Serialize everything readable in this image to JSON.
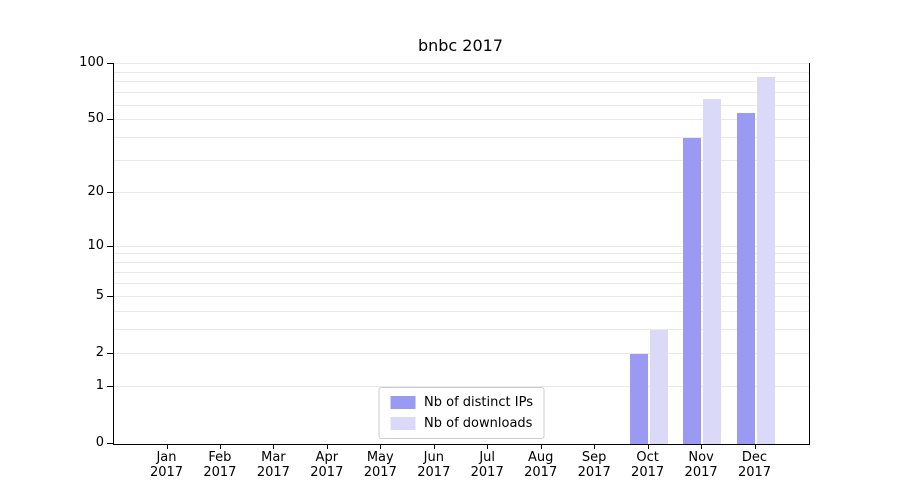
{
  "title": "bnbc 2017",
  "colors": {
    "background": "#ffffff",
    "axis": "#000000",
    "grid": "#e9e9e9",
    "legend_border": "#cccccc",
    "series_ips": "#9a9af2",
    "series_downloads": "#dadaf8"
  },
  "chart_data": {
    "type": "bar",
    "title": "bnbc 2017",
    "scale": "log1p",
    "grid": true,
    "ylim": [
      0,
      100
    ],
    "yticks": [
      0,
      1,
      2,
      5,
      10,
      20,
      50,
      100
    ],
    "gridlines": [
      1,
      2,
      3,
      4,
      5,
      6,
      7,
      8,
      9,
      10,
      20,
      30,
      40,
      50,
      60,
      70,
      80,
      90,
      100
    ],
    "categories": [
      {
        "month": "Jan",
        "year": "2017"
      },
      {
        "month": "Feb",
        "year": "2017"
      },
      {
        "month": "Mar",
        "year": "2017"
      },
      {
        "month": "Apr",
        "year": "2017"
      },
      {
        "month": "May",
        "year": "2017"
      },
      {
        "month": "Jun",
        "year": "2017"
      },
      {
        "month": "Jul",
        "year": "2017"
      },
      {
        "month": "Aug",
        "year": "2017"
      },
      {
        "month": "Sep",
        "year": "2017"
      },
      {
        "month": "Oct",
        "year": "2017"
      },
      {
        "month": "Nov",
        "year": "2017"
      },
      {
        "month": "Dec",
        "year": "2017"
      }
    ],
    "series": [
      {
        "name": "Nb of distinct IPs",
        "color": "#9a9af2",
        "values": [
          0,
          0,
          0,
          0,
          0,
          0,
          0,
          0,
          0,
          2,
          40,
          55
        ]
      },
      {
        "name": "Nb of downloads",
        "color": "#dadaf8",
        "values": [
          0,
          0,
          0,
          0,
          0,
          0,
          0,
          0,
          0,
          3,
          65,
          85
        ]
      }
    ],
    "legend_position": "lower center"
  }
}
